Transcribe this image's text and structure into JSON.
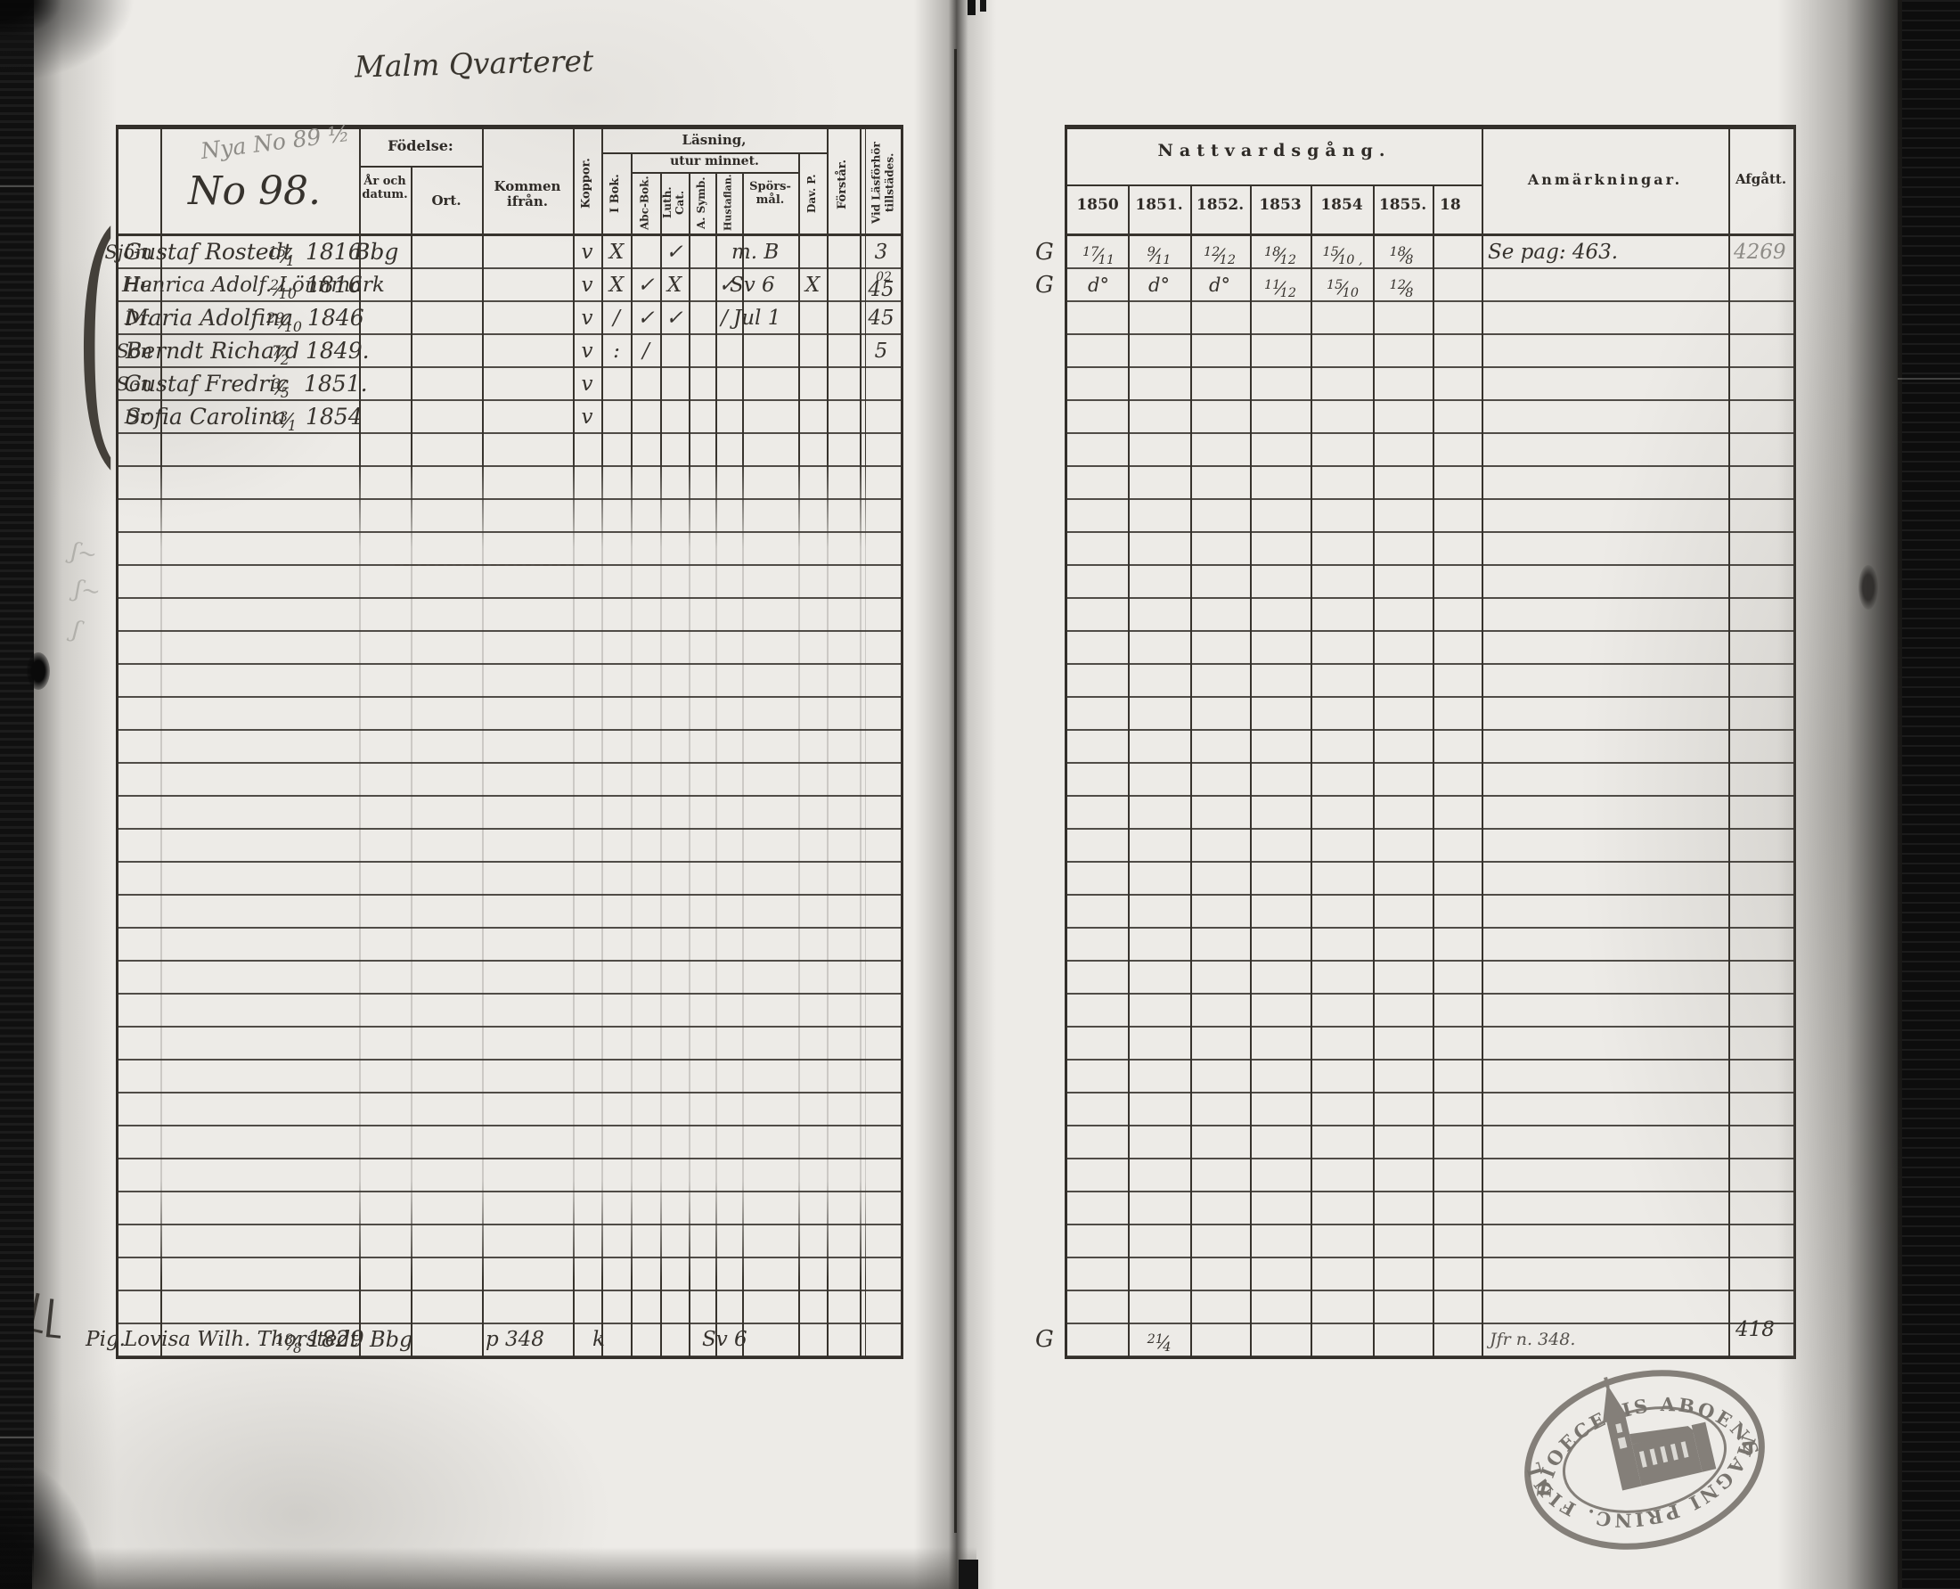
{
  "title": "Malm Qvarteret",
  "left_page": {
    "pencil_no": "Nya No 89 ½",
    "record_no": "No 98.",
    "headers": {
      "fodelse": "Födelse:",
      "ar_och_datum": "År och datum.",
      "ort": "Ort.",
      "kommen_ifran": "Kommen ifrån.",
      "koppor": "Koppor.",
      "lasning": "Läsning,",
      "utur_minnet": "utur minnet.",
      "i_bok": "I Bok.",
      "abc_bok": "Abc-Bok.",
      "luth_cat": "Luth. Cat.",
      "a_symb": "A. Symb.",
      "hustaflan": "Hustaflan.",
      "sporsmal": "Spörs-mål.",
      "dav_p": "Dav. P.",
      "forstar": "Förstår.",
      "vid_lasforhor": "Vid Läsförhör tillstädes."
    },
    "rows": [
      {
        "rel": "Sjöm",
        "name": "Gustaf Rostedt",
        "date": "15/1",
        "year": "1816",
        "ort": "Bbg",
        "koppor": "v",
        "i_bok": "X",
        "luth_cat": "✓",
        "sporsmal": "m. B",
        "vid": "3"
      },
      {
        "rel": "Hu",
        "name": "Henrica Adolf. Lönnmark",
        "date": "2/10",
        "year": "1816",
        "koppor": "v",
        "i_bok": "X",
        "abc_bok": "✓",
        "luth_cat": "X",
        "hustaflan": "✓",
        "sporsmal": "Sv 6",
        "dav_p": "X",
        "vid": "45",
        "vid_sup": "02"
      },
      {
        "rel": "Dr.",
        "name": "Maria Adolfina",
        "date": "29/10",
        "year": "1846",
        "koppor": "v",
        "i_bok": "/",
        "abc_bok": "✓",
        "luth_cat": "✓",
        "hustaflan": "/",
        "sporsmal": "Jul 1",
        "vid": "45"
      },
      {
        "rel": "Son",
        "name": "Berndt Richard",
        "date": "7/2",
        "year": "1849.",
        "koppor": "v",
        "i_bok": ":",
        "abc_bok": "/",
        "vid": "5"
      },
      {
        "rel": "Son",
        "name": "Gustaf Fredric",
        "date": "3/5",
        "year": "1851.",
        "koppor": "v"
      },
      {
        "rel": "Dr.",
        "name": "Sofia Carolina",
        "date": "13/1",
        "year": "1854",
        "koppor": "v"
      }
    ],
    "bottom_row": {
      "rel": "Pig.",
      "name": "Lovisa Wilh. Thorstedt",
      "date": "18/8",
      "year": "1829",
      "ort": "Bbg",
      "kommen_ifran": "p 348",
      "koppor": "k",
      "sporsmal": "Sv 6"
    }
  },
  "right_page": {
    "header": "Nattvardsgång.",
    "years": [
      "1850",
      "1851.",
      "1852.",
      "1853",
      "1854",
      "1855.",
      "18"
    ],
    "anmarkningar_label": "Anmärkningar.",
    "afgatt_label": "Afgått.",
    "rows": [
      {
        "g": "G",
        "y1850": "17/11",
        "y1851": "9/11",
        "y1852": "12/12",
        "y1853": "18/12",
        "y1854": "15/10 ,",
        "y1855": "18/8",
        "anm": "Se pag: 463.",
        "afgatt": "4269"
      },
      {
        "g": "G",
        "y1850": "d°",
        "y1851": "d°",
        "y1852": "d°",
        "y1853": "11/12",
        "y1854": "15/10",
        "y1855": "12/8"
      }
    ],
    "bottom_row": {
      "g": "G",
      "y1851": "21/4",
      "anm": "Jfr n. 348.",
      "afgatt": "418"
    }
  },
  "stamp": {
    "text_top": "DIOECESIS ABOENSIS.",
    "text_bottom": "MAGNI PRINC. FINL."
  }
}
